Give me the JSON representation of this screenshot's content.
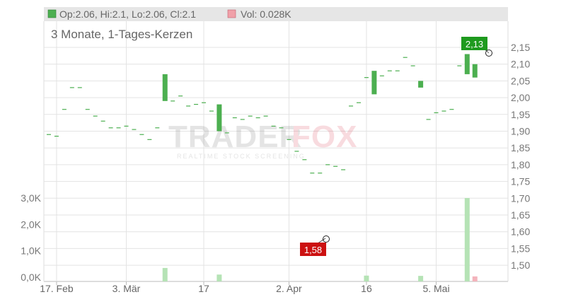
{
  "legend": {
    "ohlc_label": "Op:2.06, Hi:2.1, Lo:2.06, Cl:2.1",
    "vol_label": "Vol: 0.028K",
    "price_color": "#4caf50",
    "vol_color": "#f0a0a8"
  },
  "subtitle": "3 Monate, 1-Tages-Kerzen",
  "watermark": {
    "brand_left": "TRADER",
    "brand_right": "FOX",
    "tagline": "REALTIME STOCK SCREENING"
  },
  "annotations": {
    "high_label": "2,13",
    "low_label": "1,58"
  },
  "chart_data": {
    "type": "candlestick",
    "x_tick_labels": [
      "17. Feb",
      "3. Mär",
      "17",
      "2. Apr",
      "16",
      "5. Mai"
    ],
    "price_tick_labels": [
      "2,15",
      "2,10",
      "2,05",
      "2,00",
      "1,95",
      "1,90",
      "1,85",
      "1,80",
      "1,75",
      "1,70",
      "1,65",
      "1,60",
      "1,55",
      "1,50"
    ],
    "volume_tick_labels": [
      "3,0K",
      "2,0K",
      "1,0K",
      "0,0K"
    ],
    "price_ylim": [
      1.46,
      2.2
    ],
    "volume_ylim": [
      0,
      3.0
    ],
    "high": 2.13,
    "low": 1.58,
    "candles": [
      {
        "o": 1.89,
        "c": 1.89
      },
      {
        "o": 1.885,
        "c": 1.885
      },
      {
        "o": 1.965,
        "c": 1.965
      },
      {
        "o": 2.03,
        "c": 2.03
      },
      {
        "o": 2.03,
        "c": 2.03
      },
      {
        "o": 1.965,
        "c": 1.965
      },
      {
        "o": 1.945,
        "c": 1.945
      },
      {
        "o": 1.93,
        "c": 1.93
      },
      {
        "o": 1.91,
        "c": 1.91
      },
      {
        "o": 1.91,
        "c": 1.91
      },
      {
        "o": 1.915,
        "c": 1.915
      },
      {
        "o": 1.905,
        "c": 1.905
      },
      {
        "o": 1.89,
        "c": 1.89
      },
      {
        "o": 1.875,
        "c": 1.875
      },
      {
        "o": 1.91,
        "c": 1.91
      },
      {
        "o": 1.99,
        "c": 2.07
      },
      {
        "o": 1.99,
        "c": 1.99
      },
      {
        "o": 2.005,
        "c": 2.005
      },
      {
        "o": 1.975,
        "c": 1.975
      },
      {
        "o": 1.98,
        "c": 1.98
      },
      {
        "o": 1.985,
        "c": 1.985
      },
      {
        "o": 1.96,
        "c": 1.96
      },
      {
        "o": 1.9,
        "c": 1.98
      },
      {
        "o": 1.895,
        "c": 1.895
      },
      {
        "o": 1.94,
        "c": 1.94
      },
      {
        "o": 1.935,
        "c": 1.935
      },
      {
        "o": 1.945,
        "c": 1.945
      },
      {
        "o": 1.94,
        "c": 1.94
      },
      {
        "o": 1.945,
        "c": 1.945
      },
      {
        "o": 1.915,
        "c": 1.915
      },
      {
        "o": 1.91,
        "c": 1.91
      },
      {
        "o": 1.875,
        "c": 1.875
      },
      {
        "o": 1.84,
        "c": 1.84
      },
      {
        "o": 1.815,
        "c": 1.815
      },
      {
        "o": 1.775,
        "c": 1.775
      },
      {
        "o": 1.775,
        "c": 1.775
      },
      {
        "o": 1.8,
        "c": 1.8
      },
      {
        "o": 1.795,
        "c": 1.795
      },
      {
        "o": 1.785,
        "c": 1.785
      },
      {
        "o": 1.975,
        "c": 1.975
      },
      {
        "o": 1.985,
        "c": 1.985
      },
      {
        "o": 2.06,
        "c": 2.06
      },
      {
        "o": 2.01,
        "c": 2.08
      },
      {
        "o": 2.065,
        "c": 2.065
      },
      {
        "o": 2.08,
        "c": 2.08
      },
      {
        "o": 2.08,
        "c": 2.08
      },
      {
        "o": 2.12,
        "c": 2.12
      },
      {
        "o": 2.095,
        "c": 2.095
      },
      {
        "o": 2.05,
        "c": 2.03
      },
      {
        "o": 1.935,
        "c": 1.935
      },
      {
        "o": 1.955,
        "c": 1.955
      },
      {
        "o": 1.96,
        "c": 1.96
      },
      {
        "o": 1.965,
        "c": 1.965
      },
      {
        "o": 2.095,
        "c": 2.095
      },
      {
        "o": 2.07,
        "c": 2.13
      },
      {
        "o": 2.06,
        "c": 2.1
      }
    ],
    "volume": [
      {
        "i": 15,
        "v": 0.35
      },
      {
        "i": 22,
        "v": 0.1
      },
      {
        "i": 41,
        "v": 0.06
      },
      {
        "i": 48,
        "v": 0.05
      },
      {
        "i": 54,
        "v": 3.0
      },
      {
        "i": 55,
        "v": 0.03
      }
    ]
  }
}
